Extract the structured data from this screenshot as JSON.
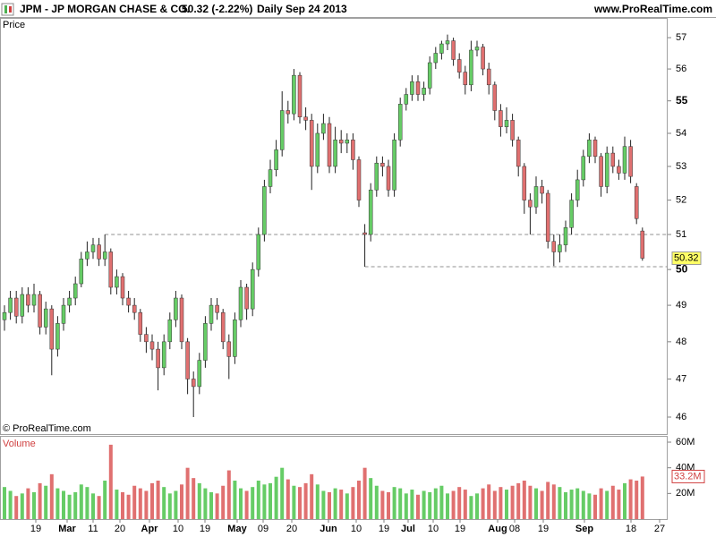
{
  "chart_data": [
    {
      "type": "candlestick",
      "title": "JPM - JP MORGAN CHASE & CO.",
      "quote": "50.32 (-2.22%)",
      "period": "Daily",
      "date": "Sep 24 2013",
      "source": "www.ProRealTime.com",
      "panel_label": "Price",
      "copyright": "© ProRealTime.com",
      "log_scale": true,
      "up_color": "#66cc66",
      "down_color": "#e07070",
      "ylim": [
        45.56,
        57.64
      ],
      "yticks": [
        46,
        47,
        48,
        49,
        50,
        51,
        52,
        53,
        54,
        55,
        56,
        57
      ],
      "reference_lines": [
        51.0,
        50.08
      ],
      "x_labels": [
        "19",
        "Mar",
        "11",
        "20",
        "Apr",
        "10",
        "19",
        "May",
        "09",
        "20",
        "Jun",
        "10",
        "19",
        "Jul",
        "10",
        "19",
        "Aug",
        "08",
        "19",
        "Sep",
        "18",
        "27"
      ],
      "open": [
        48.6,
        48.8,
        49.2,
        48.7,
        49.3,
        49.0,
        49.3,
        48.4,
        48.9,
        47.8,
        48.5,
        49.0,
        49.2,
        49.6,
        50.3,
        50.5,
        50.7,
        50.3,
        50.5,
        49.5,
        49.8,
        49.2,
        49.0,
        48.8,
        48.2,
        48.0,
        47.8,
        47.3,
        48.0,
        48.6,
        49.2,
        48.0,
        47.0,
        46.8,
        47.5,
        48.5,
        49.0,
        48.8,
        48.0,
        47.6,
        48.6,
        49.5,
        48.9,
        50.0,
        51.0,
        52.4,
        52.9,
        53.5,
        54.7,
        54.6,
        55.8,
        54.5,
        54.4,
        53.0,
        54.0,
        54.3,
        53.0,
        53.8,
        53.7,
        53.8,
        53.2,
        51.05,
        51.0,
        52.3,
        53.1,
        53.0,
        52.3,
        53.8,
        54.9,
        55.2,
        55.6,
        55.2,
        55.4,
        56.2,
        56.5,
        56.8,
        56.9,
        56.3,
        55.9,
        55.5,
        56.6,
        56.7,
        56.0,
        55.5,
        54.7,
        54.2,
        54.4,
        53.8,
        53.0,
        52.0,
        51.8,
        52.4,
        52.2,
        50.8,
        50.5,
        50.7,
        51.2,
        52.0,
        52.6,
        53.3,
        53.8,
        53.3,
        52.4,
        53.4,
        53.0,
        52.8,
        53.6,
        52.4,
        51.1
      ],
      "high": [
        49.0,
        49.4,
        49.4,
        49.5,
        49.5,
        49.6,
        49.4,
        49.1,
        49.0,
        48.7,
        49.2,
        49.4,
        49.8,
        50.5,
        50.8,
        50.9,
        50.9,
        51.0,
        50.6,
        50.0,
        49.9,
        49.4,
        49.2,
        48.9,
        48.4,
        48.2,
        48.0,
        48.2,
        48.8,
        49.4,
        49.3,
        48.1,
        47.2,
        47.7,
        48.7,
        49.2,
        49.2,
        48.9,
        48.2,
        48.8,
        49.7,
        49.6,
        50.2,
        51.2,
        52.6,
        53.2,
        53.8,
        55.3,
        55.0,
        56.0,
        55.9,
        54.8,
        54.6,
        54.3,
        54.6,
        54.5,
        54.2,
        54.1,
        54.0,
        54.0,
        53.3,
        51.3,
        52.5,
        53.3,
        53.3,
        53.2,
        54.0,
        55.1,
        55.4,
        55.8,
        55.8,
        55.6,
        56.4,
        56.7,
        56.9,
        57.1,
        57.0,
        56.5,
        56.1,
        56.9,
        56.9,
        56.8,
        56.2,
        55.6,
        54.9,
        54.8,
        54.6,
        53.9,
        53.1,
        52.2,
        52.7,
        52.6,
        52.3,
        51.0,
        51.0,
        51.4,
        52.2,
        52.9,
        53.5,
        54.0,
        53.9,
        53.4,
        53.6,
        53.6,
        53.2,
        53.9,
        53.8,
        52.5,
        51.2
      ],
      "low": [
        48.3,
        48.6,
        48.5,
        48.5,
        48.8,
        48.8,
        48.2,
        48.2,
        47.1,
        47.6,
        48.3,
        48.8,
        49.0,
        49.5,
        50.1,
        50.3,
        50.1,
        50.1,
        49.3,
        49.3,
        49.0,
        48.8,
        48.6,
        48.0,
        47.7,
        47.5,
        46.7,
        47.1,
        47.8,
        48.4,
        47.8,
        46.6,
        46.0,
        46.6,
        47.3,
        48.3,
        48.6,
        47.8,
        47.0,
        47.4,
        48.4,
        48.6,
        48.7,
        49.8,
        50.8,
        52.2,
        52.7,
        53.3,
        54.3,
        54.4,
        54.3,
        54.1,
        52.3,
        52.8,
        53.8,
        52.8,
        52.8,
        53.4,
        53.4,
        52.9,
        51.8,
        50.08,
        50.8,
        52.1,
        52.7,
        52.1,
        52.1,
        53.6,
        54.7,
        55.0,
        55.0,
        55.0,
        55.2,
        56.0,
        56.3,
        56.6,
        56.1,
        55.7,
        55.2,
        55.3,
        56.4,
        55.8,
        55.2,
        54.4,
        53.9,
        54.0,
        53.6,
        52.7,
        51.6,
        51.0,
        51.6,
        51.9,
        50.6,
        50.1,
        50.2,
        50.5,
        51.0,
        51.8,
        52.4,
        53.1,
        53.1,
        52.1,
        52.2,
        52.8,
        52.6,
        52.6,
        52.5,
        51.3,
        50.25
      ],
      "close": [
        48.8,
        49.2,
        48.7,
        49.3,
        49.0,
        49.3,
        48.4,
        48.9,
        47.8,
        48.5,
        49.0,
        49.2,
        49.6,
        50.3,
        50.5,
        50.7,
        50.3,
        50.5,
        49.5,
        49.8,
        49.2,
        49.0,
        48.8,
        48.2,
        48.0,
        47.8,
        47.3,
        48.0,
        48.6,
        49.2,
        48.0,
        47.0,
        46.8,
        47.5,
        48.5,
        49.0,
        48.8,
        48.0,
        47.6,
        48.6,
        49.5,
        48.9,
        50.0,
        51.0,
        52.4,
        52.9,
        53.5,
        54.7,
        54.6,
        55.8,
        54.5,
        54.4,
        53.0,
        54.0,
        54.3,
        53.0,
        53.8,
        53.7,
        53.8,
        53.2,
        52.0,
        51.0,
        52.3,
        53.1,
        53.0,
        52.3,
        53.8,
        54.9,
        55.2,
        55.6,
        55.2,
        55.4,
        56.2,
        56.5,
        56.8,
        56.9,
        56.3,
        55.9,
        55.5,
        56.6,
        56.7,
        56.0,
        55.5,
        54.7,
        54.2,
        54.4,
        53.8,
        53.0,
        52.0,
        51.8,
        52.4,
        52.2,
        50.8,
        50.5,
        50.7,
        51.2,
        52.0,
        52.6,
        53.3,
        53.8,
        53.3,
        52.4,
        53.4,
        53.0,
        52.8,
        53.6,
        52.7,
        51.46,
        50.32
      ]
    },
    {
      "type": "bar",
      "panel_label": "Volume",
      "ylim": [
        0,
        64.2
      ],
      "yticks": [
        {
          "value": 20,
          "label": "20M"
        },
        {
          "value": 40,
          "label": "40M"
        },
        {
          "value": 60,
          "label": "60M"
        }
      ],
      "last_label": "33.2M",
      "values": [
        25,
        22,
        18,
        20,
        24,
        21,
        28,
        26,
        35,
        24,
        22,
        19,
        21,
        27,
        25,
        20,
        18,
        30,
        58,
        23,
        21,
        19,
        26,
        24,
        22,
        28,
        30,
        25,
        20,
        22,
        27,
        40,
        32,
        28,
        24,
        21,
        20,
        26,
        38,
        30,
        24,
        22,
        25,
        30,
        27,
        28,
        33,
        40,
        31,
        26,
        25,
        28,
        35,
        27,
        22,
        21,
        24,
        23,
        20,
        25,
        30,
        40,
        32,
        26,
        22,
        21,
        25,
        24,
        20,
        23,
        19,
        22,
        21,
        24,
        26,
        20,
        22,
        25,
        23,
        18,
        20,
        24,
        27,
        22,
        25,
        23,
        26,
        28,
        30,
        26,
        24,
        22,
        29,
        27,
        25,
        21,
        23,
        24,
        22,
        20,
        19,
        24,
        22,
        26,
        23,
        28,
        31,
        30,
        33.2
      ]
    }
  ]
}
